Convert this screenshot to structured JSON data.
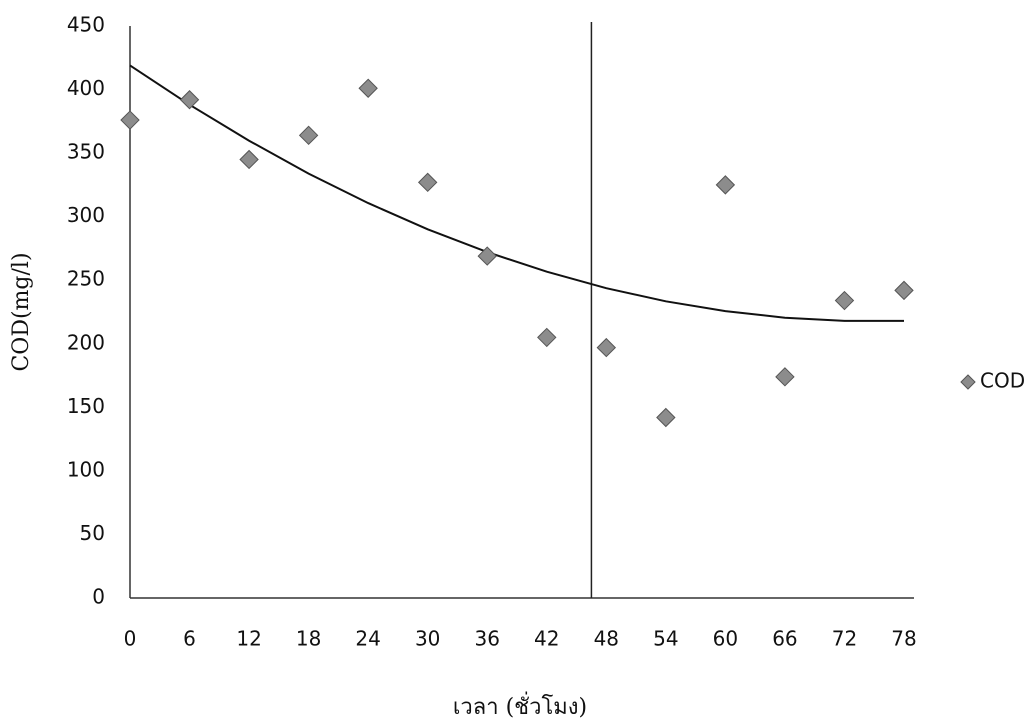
{
  "chart_data": {
    "type": "scatter",
    "x_label": "เวลา (ชั่วโมง)",
    "y_label": "COD(mg/l)",
    "x": [
      0,
      6,
      12,
      18,
      24,
      30,
      36,
      42,
      48,
      54,
      60,
      66,
      72,
      78
    ],
    "series": [
      {
        "name": "COD",
        "color": "#8c8c8c",
        "values": [
          376,
          392,
          345,
          364,
          401,
          327,
          269,
          205,
          197,
          142,
          325,
          174,
          234,
          242
        ]
      }
    ],
    "trendline": {
      "x": [
        0,
        6,
        12,
        18,
        24,
        30,
        36,
        42,
        48,
        54,
        60,
        66,
        72,
        78
      ],
      "values": [
        419,
        388.1,
        359.8,
        333.9,
        310.7,
        290.1,
        272.1,
        256.7,
        243.7,
        233.4,
        225.7,
        220.5,
        218,
        218
      ]
    },
    "vline": 46.5,
    "xlim": [
      0,
      78
    ],
    "xticks": [
      0,
      6,
      12,
      18,
      24,
      30,
      36,
      42,
      48,
      54,
      60,
      66,
      72,
      78
    ],
    "ylim": [
      0,
      450
    ],
    "yticks": [
      0,
      50,
      100,
      150,
      200,
      250,
      300,
      350,
      400,
      450
    ],
    "grid": false,
    "legend": "right"
  }
}
